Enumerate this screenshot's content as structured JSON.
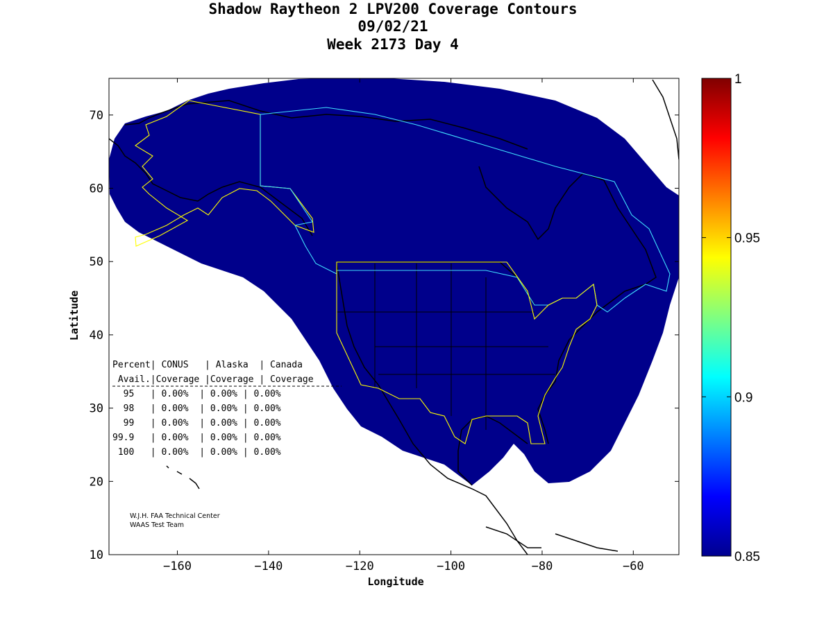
{
  "titles": {
    "line1": "Shadow Raytheon 2 LPV200 Coverage Contours",
    "line2": "09/02/21",
    "line3": "Week 2173 Day 4"
  },
  "axes": {
    "xlabel": "Longitude",
    "ylabel": "Latitude",
    "xlim": [
      -175,
      -50
    ],
    "ylim": [
      10,
      75
    ],
    "xticks": [
      -160,
      -140,
      -120,
      -100,
      -80,
      -60
    ],
    "yticks": [
      10,
      20,
      30,
      40,
      50,
      60,
      70
    ]
  },
  "colorbar": {
    "range": [
      0.85,
      1.0
    ],
    "colormap": "jet",
    "ticks": [
      "1",
      "0.95",
      "0.9",
      "0.85"
    ]
  },
  "coverage_fill_color": "#00008b",
  "table": {
    "header1": "Percent| CONUS   | Alaska  | Canada",
    "header2": " Avail.|Coverage |Coverage | Coverage",
    "rows": [
      "  95   | 0.00%  | 0.00% | 0.00%",
      "  98   | 0.00%  | 0.00% | 0.00%",
      "  99   | 0.00%  | 0.00% | 0.00%",
      "99.9   | 0.00%  | 0.00% | 0.00%",
      " 100   | 0.00%  | 0.00% | 0.00%"
    ]
  },
  "credit": {
    "line1": "W.J.H. FAA Technical Center",
    "line2": "WAAS Test Team"
  },
  "chart_data": {
    "type": "heatmap",
    "title": "Shadow Raytheon 2 LPV200 Coverage Contours",
    "xlabel": "Longitude",
    "ylabel": "Latitude",
    "xlim": [
      -175,
      -50
    ],
    "ylim": [
      10,
      75
    ],
    "colorbar_range": [
      0.85,
      1.0
    ],
    "coverage_level_shown": 0.85,
    "coverage_table": {
      "columns": [
        "Percent Avail.",
        "CONUS Coverage",
        "Alaska Coverage",
        "Canada Coverage"
      ],
      "rows": [
        [
          "95",
          "0.00%",
          "0.00%",
          "0.00%"
        ],
        [
          "98",
          "0.00%",
          "0.00%",
          "0.00%"
        ],
        [
          "99",
          "0.00%",
          "0.00%",
          "0.00%"
        ],
        [
          "99.9",
          "0.00%",
          "0.00%",
          "0.00%"
        ],
        [
          "100",
          "0.00%",
          "0.00%",
          "0.00%"
        ]
      ]
    }
  }
}
